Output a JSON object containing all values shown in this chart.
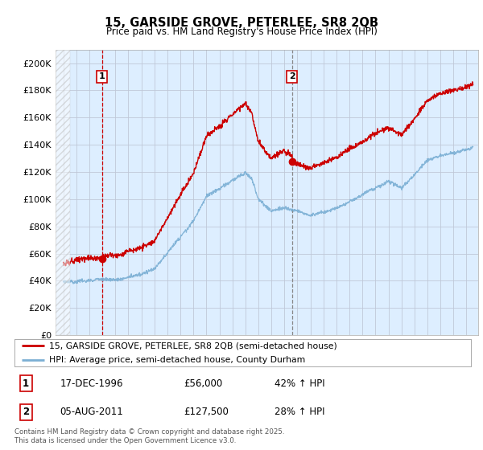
{
  "title": "15, GARSIDE GROVE, PETERLEE, SR8 2QB",
  "subtitle": "Price paid vs. HM Land Registry's House Price Index (HPI)",
  "legend_line1": "15, GARSIDE GROVE, PETERLEE, SR8 2QB (semi-detached house)",
  "legend_line2": "HPI: Average price, semi-detached house, County Durham",
  "annotation1_date": "17-DEC-1996",
  "annotation1_price": "£56,000",
  "annotation1_hpi": "42% ↑ HPI",
  "annotation2_date": "05-AUG-2011",
  "annotation2_price": "£127,500",
  "annotation2_hpi": "28% ↑ HPI",
  "footer": "Contains HM Land Registry data © Crown copyright and database right 2025.\nThis data is licensed under the Open Government Licence v3.0.",
  "red_color": "#cc0000",
  "blue_color": "#7bafd4",
  "plot_bg": "#ddeeff",
  "ylim": [
    0,
    210000
  ],
  "yticks": [
    0,
    20000,
    40000,
    60000,
    80000,
    100000,
    120000,
    140000,
    160000,
    180000,
    200000
  ],
  "sale1_year": 1996.97,
  "sale1_price": 56000,
  "sale2_year": 2011.59,
  "sale2_price": 127500,
  "background_color": "#ffffff",
  "grid_color": "#c0c8d8"
}
